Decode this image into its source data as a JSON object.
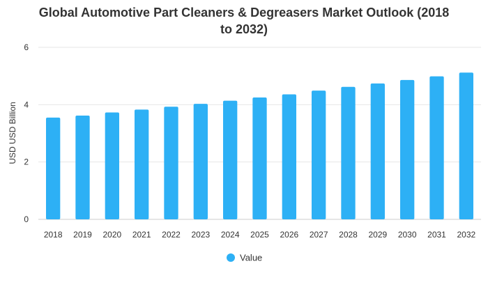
{
  "chart_data": {
    "type": "bar",
    "title_line1": "Global Automotive Part Cleaners & Degreasers Market Outlook (2018",
    "title_line2": "to 2032)",
    "ylabel": "USD USD Billion",
    "xlabel": "",
    "ylim": [
      0,
      6
    ],
    "yticks": [
      0,
      2,
      4,
      6
    ],
    "grid": true,
    "legend_position": "bottom-center",
    "categories": [
      "2018",
      "2019",
      "2020",
      "2021",
      "2022",
      "2023",
      "2024",
      "2025",
      "2026",
      "2027",
      "2028",
      "2029",
      "2030",
      "2031",
      "2032"
    ],
    "series": [
      {
        "name": "Value",
        "color": "#2db0f5",
        "values": [
          3.55,
          3.62,
          3.73,
          3.83,
          3.93,
          4.03,
          4.14,
          4.25,
          4.36,
          4.49,
          4.62,
          4.74,
          4.86,
          4.99,
          5.12
        ]
      }
    ]
  }
}
